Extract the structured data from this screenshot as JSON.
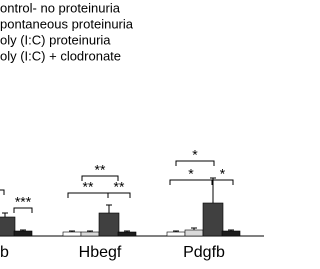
{
  "chart_data": {
    "type": "bar",
    "categories": [
      "b",
      "Hbegf",
      "Pdgfb"
    ],
    "series": [
      {
        "name": "ontrol- no proteinuria",
        "color": "#ffffff",
        "values": [
          4,
          4,
          4
        ],
        "errors": [
          1,
          1,
          1
        ]
      },
      {
        "name": "pontaneous proteinuria",
        "color": "#d9d9d9",
        "values": [
          10,
          4,
          6
        ],
        "errors": [
          2,
          1,
          2
        ]
      },
      {
        "name": "oly (I:C) proteinuria",
        "color": "#404040",
        "values": [
          19,
          23,
          33
        ],
        "errors": [
          4,
          8,
          25
        ]
      },
      {
        "name": "oly (I:C) + clodronate",
        "color": "#1c1c1c",
        "values": [
          5,
          4,
          5
        ],
        "errors": [
          1,
          1,
          1
        ]
      }
    ],
    "ylim": [
      0,
      100
    ],
    "annotations": [
      "*",
      "***",
      "**",
      "**",
      "**",
      "*",
      "*",
      "*"
    ]
  }
}
